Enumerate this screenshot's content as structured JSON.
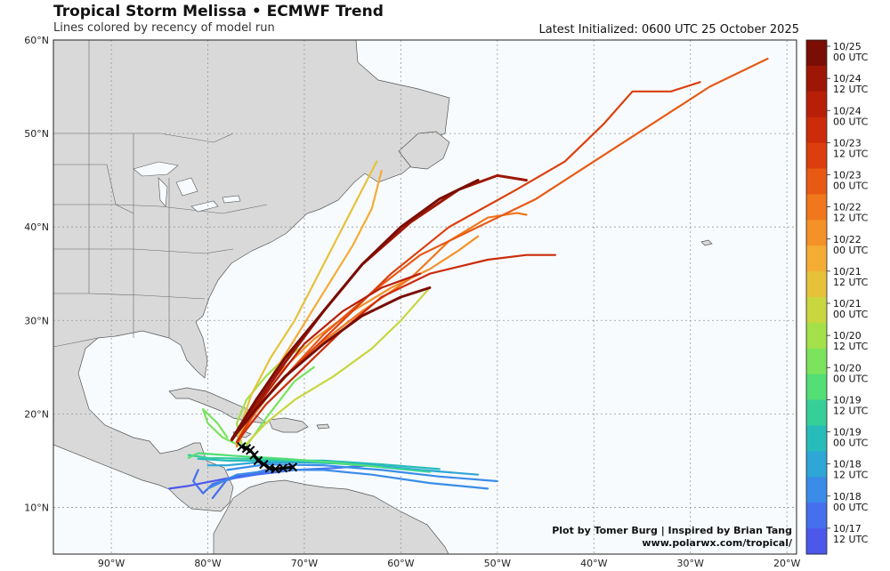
{
  "header": {
    "title": "Tropical Storm Melissa • ECMWF Trend",
    "subtitle": "Lines colored by recency of model run",
    "latest": "Latest Initialized: 0600 UTC 25 October 2025"
  },
  "credits": {
    "line1": "Plot by Tomer Burg | Inspired by Brian Tang",
    "line2": "www.polarwx.com/tropical/"
  },
  "colors": {
    "ocean": "#f7fbfe",
    "land": "#d9d9d9",
    "border": "#555555",
    "grid": "#999999",
    "observed_track": "#000000"
  },
  "chart_data": {
    "type": "line",
    "map": {
      "lon_range": [
        -96,
        -19
      ],
      "lat_range": [
        5,
        60
      ],
      "x_ticks": [
        "90°W",
        "80°W",
        "70°W",
        "60°W",
        "50°W",
        "40°W",
        "30°W",
        "20°W"
      ],
      "x_tick_values": [
        -90,
        -80,
        -70,
        -60,
        -50,
        -40,
        -30,
        -20
      ],
      "y_ticks": [
        "10°N",
        "20°N",
        "30°N",
        "40°N",
        "50°N",
        "60°N"
      ],
      "y_tick_values": [
        10,
        20,
        30,
        40,
        50,
        60
      ],
      "grid": true
    },
    "colorbar": {
      "labels": [
        "10/25\n00 UTC",
        "10/24\n12 UTC",
        "10/24\n00 UTC",
        "10/23\n12 UTC",
        "10/23\n00 UTC",
        "10/22\n12 UTC",
        "10/22\n00 UTC",
        "10/21\n12 UTC",
        "10/21\n00 UTC",
        "10/20\n12 UTC",
        "10/20\n00 UTC",
        "10/19\n12 UTC",
        "10/19\n00 UTC",
        "10/18\n12 UTC",
        "10/18\n00 UTC",
        "10/17\n12 UTC"
      ],
      "colors": [
        "#7a0d04",
        "#9e1706",
        "#b81f08",
        "#cc2c0a",
        "#dc3f0d",
        "#e85a14",
        "#f0771c",
        "#f49128",
        "#f5ac35",
        "#e6c23a",
        "#c9d63f",
        "#a4e04a",
        "#7be35c",
        "#53de76",
        "#36cf9a",
        "#27bcba",
        "#2ea6d6",
        "#3a8ce8",
        "#466fee",
        "#4c58ea"
      ],
      "placement": "right"
    },
    "observed_track": {
      "name": "Observed",
      "points": [
        [
          -71.2,
          14.3
        ],
        [
          -72.2,
          14.2
        ],
        [
          -73.0,
          14.1
        ],
        [
          -73.6,
          14.2
        ],
        [
          -74.2,
          14.6
        ],
        [
          -74.8,
          15.0
        ],
        [
          -75.2,
          15.6
        ],
        [
          -75.6,
          16.1
        ],
        [
          -76.0,
          16.3
        ],
        [
          -76.5,
          16.5
        ]
      ],
      "markers": [
        [
          -71.2,
          14.3
        ],
        [
          -72.2,
          14.2
        ],
        [
          -73.0,
          14.1
        ],
        [
          -73.6,
          14.2
        ],
        [
          -74.2,
          14.6
        ],
        [
          -74.8,
          15.0
        ],
        [
          -75.2,
          15.6
        ],
        [
          -75.6,
          16.1
        ],
        [
          -76.0,
          16.3
        ],
        [
          -76.5,
          16.5
        ]
      ]
    },
    "series": [
      {
        "run": "10/17 12 UTC",
        "color": "#4c58ea",
        "points": [
          [
            -73,
            14
          ],
          [
            -76,
            13.5
          ],
          [
            -78.5,
            13
          ],
          [
            -80.5,
            12.6
          ],
          [
            -82,
            12.3
          ],
          [
            -84,
            12.0
          ]
        ]
      },
      {
        "run": "10/18 00 UTC",
        "color": "#466fee",
        "points": [
          [
            -74,
            14
          ],
          [
            -77,
            13.2
          ],
          [
            -79.5,
            12.5
          ],
          [
            -80.5,
            11.5
          ],
          [
            -81.5,
            12.8
          ],
          [
            -81,
            14
          ]
        ]
      },
      {
        "run": "10/18 00 UTC",
        "color": "#466fee",
        "points": [
          [
            -63,
            14.5
          ],
          [
            -67,
            14.2
          ],
          [
            -71,
            14.0
          ],
          [
            -75,
            13.5
          ],
          [
            -78,
            13.0
          ],
          [
            -79.5,
            11.0
          ]
        ]
      },
      {
        "run": "10/18 12 UTC",
        "color": "#3a8ce8",
        "points": [
          [
            -51,
            12.0
          ],
          [
            -57,
            12.6
          ],
          [
            -63,
            13.5
          ],
          [
            -68,
            14.0
          ],
          [
            -73,
            14.0
          ],
          [
            -77,
            13.5
          ],
          [
            -79,
            12.5
          ],
          [
            -80,
            12.0
          ]
        ]
      },
      {
        "run": "10/18 12 UTC",
        "color": "#3a8ce8",
        "points": [
          [
            -50,
            12.8
          ],
          [
            -56,
            13.3
          ],
          [
            -62,
            14.0
          ],
          [
            -68,
            14.5
          ],
          [
            -74,
            14.6
          ],
          [
            -78,
            14.0
          ]
        ]
      },
      {
        "run": "10/19 00 UTC",
        "color": "#2ea6d6",
        "points": [
          [
            -52,
            13.5
          ],
          [
            -58,
            14.0
          ],
          [
            -64,
            14.6
          ],
          [
            -70,
            14.8
          ],
          [
            -75,
            14.8
          ],
          [
            -78,
            14.5
          ],
          [
            -80,
            14.5
          ]
        ]
      },
      {
        "run": "10/19 12 UTC",
        "color": "#27bcba",
        "points": [
          [
            -56,
            14.1
          ],
          [
            -62,
            14.6
          ],
          [
            -68,
            15.0
          ],
          [
            -74,
            15.0
          ],
          [
            -78,
            15.0
          ],
          [
            -81,
            15.2
          ]
        ]
      },
      {
        "run": "10/19 12 UTC",
        "color": "#36cf9a",
        "points": [
          [
            -57,
            13.8
          ],
          [
            -63,
            14.4
          ],
          [
            -69,
            14.9
          ],
          [
            -75,
            15.2
          ],
          [
            -80,
            15.3
          ],
          [
            -82,
            15.6
          ]
        ]
      },
      {
        "run": "10/20 00 UTC",
        "color": "#53de76",
        "points": [
          [
            -62,
            14.3
          ],
          [
            -67,
            14.8
          ],
          [
            -72,
            15.2
          ],
          [
            -77,
            15.5
          ],
          [
            -81,
            15.8
          ],
          [
            -82,
            15.3
          ]
        ]
      },
      {
        "run": "10/20 12 UTC",
        "color": "#7be35c",
        "points": [
          [
            -76.5,
            16.5
          ],
          [
            -78.5,
            17.5
          ],
          [
            -80,
            19.0
          ],
          [
            -80.5,
            20.5
          ],
          [
            -79,
            19.0
          ],
          [
            -78.0,
            17.5
          ]
        ]
      },
      {
        "run": "10/20 12 UTC",
        "color": "#7be35c",
        "points": [
          [
            -76,
            16.6
          ],
          [
            -75,
            18.0
          ],
          [
            -74,
            19.5
          ],
          [
            -72.5,
            21.5
          ],
          [
            -71,
            23.5
          ],
          [
            -69,
            25.0
          ]
        ]
      },
      {
        "run": "10/21 00 UTC",
        "color": "#a4e04a",
        "points": [
          [
            -76.5,
            16.8
          ],
          [
            -77,
            19
          ],
          [
            -76,
            21.5
          ],
          [
            -74,
            24
          ],
          [
            -72,
            26
          ],
          [
            -70,
            27.3
          ]
        ]
      },
      {
        "run": "10/21 00 UTC",
        "color": "#c9d63f",
        "points": [
          [
            -76,
            16.8
          ],
          [
            -74,
            19
          ],
          [
            -71,
            21.5
          ],
          [
            -67,
            24
          ],
          [
            -63,
            27
          ],
          [
            -60,
            30
          ],
          [
            -57,
            33.5
          ]
        ]
      },
      {
        "run": "10/21 12 UTC",
        "color": "#e6c23a",
        "points": [
          [
            -77,
            16.8
          ],
          [
            -76.5,
            19
          ],
          [
            -75.5,
            22
          ],
          [
            -73.5,
            26
          ],
          [
            -71,
            30
          ],
          [
            -68.5,
            35
          ],
          [
            -66,
            40
          ],
          [
            -64,
            44
          ],
          [
            -62.5,
            47
          ]
        ]
      },
      {
        "run": "10/22 00 UTC",
        "color": "#f5ac35",
        "points": [
          [
            -77,
            16.5
          ],
          [
            -76,
            19.5
          ],
          [
            -74,
            23
          ],
          [
            -71,
            28
          ],
          [
            -68,
            33
          ],
          [
            -65,
            38
          ],
          [
            -63,
            42
          ],
          [
            -62,
            46
          ]
        ]
      },
      {
        "run": "10/22 00 UTC",
        "color": "#f49128",
        "points": [
          [
            -77,
            16.5
          ],
          [
            -75.5,
            20
          ],
          [
            -73,
            24
          ],
          [
            -69,
            28
          ],
          [
            -65,
            31
          ],
          [
            -61,
            33.5
          ],
          [
            -57,
            35.5
          ],
          [
            -54,
            37.5
          ],
          [
            -52,
            39
          ]
        ]
      },
      {
        "run": "10/22 12 UTC",
        "color": "#f0771c",
        "points": [
          [
            -77,
            16.6
          ],
          [
            -75.5,
            19.5
          ],
          [
            -73,
            23
          ],
          [
            -69,
            27
          ],
          [
            -64,
            31
          ],
          [
            -59,
            34.5
          ],
          [
            -55,
            38.5
          ],
          [
            -51,
            41
          ],
          [
            -48,
            41.5
          ],
          [
            -47,
            41.3
          ]
        ]
      },
      {
        "run": "10/23 00 UTC",
        "color": "#e85a14",
        "points": [
          [
            -77,
            17
          ],
          [
            -75,
            20.5
          ],
          [
            -72,
            24
          ],
          [
            -68,
            28.5
          ],
          [
            -63,
            33
          ],
          [
            -58,
            37
          ],
          [
            -52,
            40
          ],
          [
            -46,
            43
          ],
          [
            -40,
            47
          ],
          [
            -34,
            51
          ],
          [
            -28,
            55
          ],
          [
            -22,
            58
          ]
        ]
      },
      {
        "run": "10/23 12 UTC",
        "color": "#dc3f0d",
        "points": [
          [
            -77,
            17
          ],
          [
            -75,
            20.5
          ],
          [
            -71,
            25
          ],
          [
            -66,
            30
          ],
          [
            -61,
            35
          ],
          [
            -55,
            40
          ],
          [
            -48,
            44
          ],
          [
            -43,
            47
          ],
          [
            -39,
            51
          ],
          [
            -36,
            54.5
          ],
          [
            -32,
            54.5
          ],
          [
            -29,
            55.5
          ]
        ]
      },
      {
        "run": "10/23 12 UTC",
        "color": "#cc2c0a",
        "points": [
          [
            -77,
            17
          ],
          [
            -74,
            21
          ],
          [
            -70,
            25
          ],
          [
            -66,
            29
          ],
          [
            -62,
            32.5
          ],
          [
            -57,
            35
          ],
          [
            -51,
            36.5
          ],
          [
            -47,
            37
          ],
          [
            -44,
            37
          ]
        ]
      },
      {
        "run": "10/24 00 UTC",
        "color": "#b81f08",
        "points": [
          [
            -77.5,
            17.2
          ],
          [
            -75.5,
            20
          ],
          [
            -73,
            23.5
          ],
          [
            -70,
            27.5
          ],
          [
            -66,
            31
          ],
          [
            -62,
            33.5
          ],
          [
            -58,
            35
          ]
        ]
      },
      {
        "run": "10/24 12 UTC",
        "color": "#9e1706",
        "points": [
          [
            -77.5,
            17.2
          ],
          [
            -75,
            21
          ],
          [
            -72,
            25.5
          ],
          [
            -68,
            31
          ],
          [
            -64,
            36
          ],
          [
            -59,
            40.5
          ],
          [
            -54,
            44
          ],
          [
            -50,
            45.5
          ],
          [
            -47,
            45
          ]
        ]
      },
      {
        "run": "10/25 00 UTC",
        "color": "#7a0d04",
        "points": [
          [
            -77.5,
            17.3
          ],
          [
            -75,
            21.5
          ],
          [
            -72,
            26
          ],
          [
            -68,
            31
          ],
          [
            -64,
            36
          ],
          [
            -60,
            40
          ],
          [
            -56,
            43
          ],
          [
            -52,
            45
          ]
        ]
      },
      {
        "run": "10/25 00 UTC",
        "color": "#7a0d04",
        "points": [
          [
            -77.5,
            17.3
          ],
          [
            -75,
            20.5
          ],
          [
            -72,
            24
          ],
          [
            -68,
            27.5
          ],
          [
            -64,
            30.5
          ],
          [
            -60,
            32.5
          ],
          [
            -57,
            33.5
          ]
        ]
      }
    ]
  }
}
